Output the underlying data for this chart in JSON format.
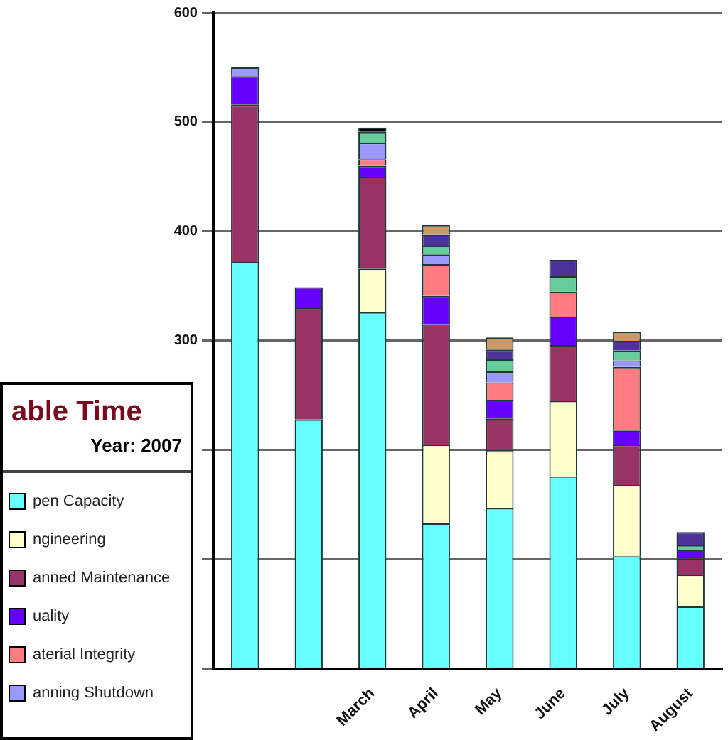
{
  "chart_data": {
    "type": "bar",
    "stacked": true,
    "legend_title": "able Time",
    "subtitle": "Year: 2007",
    "categories": [
      null,
      null,
      "March",
      "April",
      "May",
      "June",
      "July",
      "August"
    ],
    "series": [
      {
        "name": "pen Capacity",
        "color": "#66ffff",
        "values": [
          372,
          228,
          326,
          133,
          147,
          176,
          103,
          57
        ]
      },
      {
        "name": "ngineering",
        "color": "#ffffcc",
        "values": [
          0,
          0,
          40,
          72,
          53,
          69,
          65,
          29
        ]
      },
      {
        "name": "anned Maintenance",
        "color": "#993366",
        "values": [
          144,
          102,
          84,
          110,
          29,
          51,
          37,
          15
        ]
      },
      {
        "name": "uality",
        "color": "#6600ff",
        "values": [
          26,
          19,
          10,
          26,
          17,
          26,
          13,
          8
        ]
      },
      {
        "name": "aterial Integrity",
        "color": "#ff7c80",
        "values": [
          0,
          0,
          6,
          29,
          16,
          23,
          58,
          0
        ]
      },
      {
        "name": "anning Shutdown",
        "color": "#9999ff",
        "values": [
          8,
          0,
          15,
          9,
          10,
          0,
          6,
          0
        ]
      },
      {
        "color": "#66cc99",
        "values": [
          0,
          0,
          10,
          8,
          11,
          14,
          9,
          4
        ]
      },
      {
        "color": "#4d3399",
        "values": [
          0,
          0,
          0,
          10,
          9,
          15,
          9,
          12
        ]
      },
      {
        "color": "#cc9966",
        "values": [
          0,
          0,
          0,
          9,
          11,
          0,
          8,
          0
        ]
      },
      {
        "color": "#000000",
        "values": [
          0,
          0,
          4,
          0,
          0,
          0,
          0,
          0
        ]
      }
    ],
    "ylim": [
      0,
      600
    ],
    "yticks": [
      {
        "value": 0,
        "label": null
      },
      {
        "value": 100,
        "label": null
      },
      {
        "value": 200,
        "label": null
      },
      300,
      400,
      500,
      600
    ],
    "grid": "y",
    "legend": "bottom left"
  }
}
